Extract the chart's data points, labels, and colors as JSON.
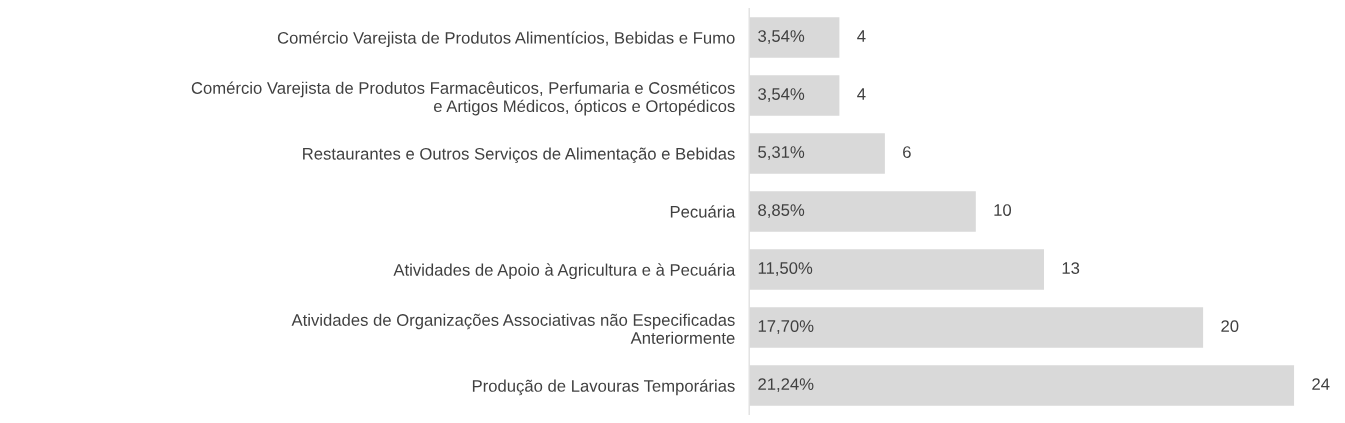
{
  "chart_data": {
    "type": "bar",
    "orientation": "horizontal",
    "tick_labels": "y",
    "grid": false,
    "legend": false,
    "categories": [
      "Comércio Varejista de Produtos Alimentícios, Bebidas e Fumo",
      "Comércio Varejista de Produtos Farmacêuticos, Perfumaria e Cosméticos\ne Artigos Médicos, ópticos e Ortopédicos",
      "Restaurantes e Outros Serviços de Alimentação e Bebidas",
      "Pecuária",
      "Atividades de Apoio à Agricultura e à Pecuária",
      "Atividades de Organizações Associativas não Especificadas\nAnteriormente",
      "Produção de Lavouras Temporárias"
    ],
    "values": [
      4,
      4,
      6,
      10,
      13,
      20,
      24
    ],
    "value_labels": [
      "4",
      "4",
      "6",
      "10",
      "13",
      "20",
      "24"
    ],
    "annotations": [
      "3,54%",
      "3,54%",
      "5,31%",
      "8,85%",
      "11,50%",
      "17,70%",
      "21,24%"
    ],
    "color": "#d9d9d9"
  }
}
